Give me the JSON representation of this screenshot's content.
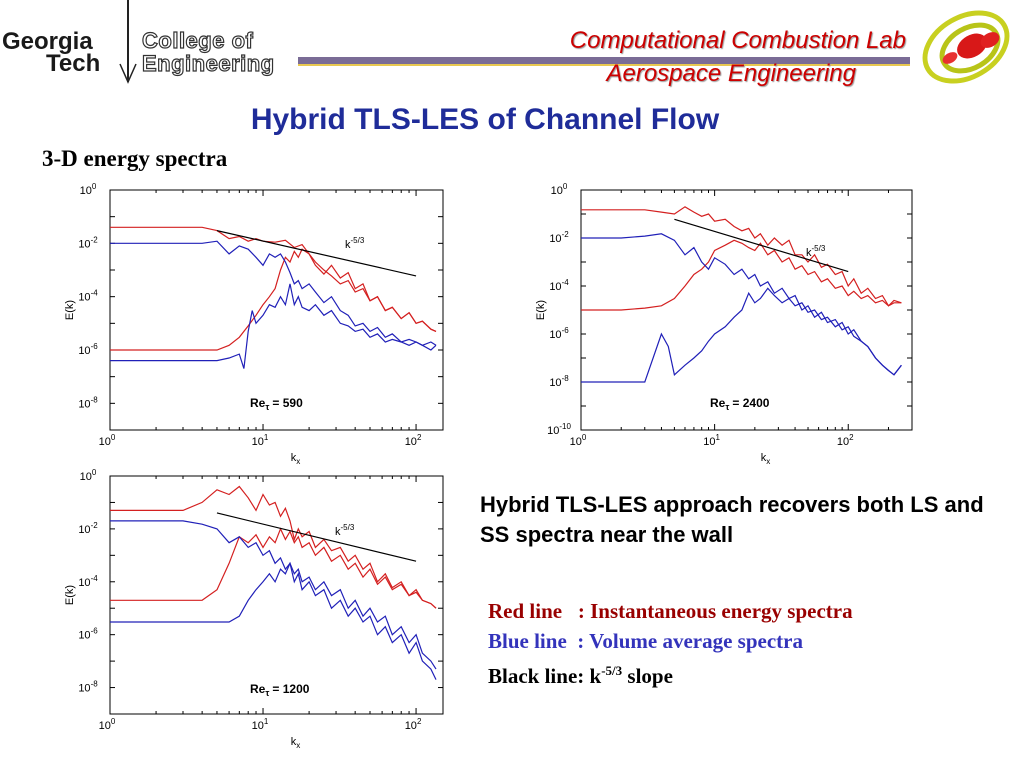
{
  "header": {
    "logo_line1": "Georgia",
    "logo_line2": "Tech",
    "college_line1": "College of",
    "college_line2": "Engineering",
    "lab_name": "Computational Combustion Lab",
    "department": "Aerospace Engineering"
  },
  "slide": {
    "title": "Hybrid TLS-LES of Channel Flow",
    "subtitle": "3-D energy spectra",
    "description": "Hybrid TLS-LES approach recovers both LS and SS spectra near the wall",
    "legend": {
      "red_label": "Red line",
      "red_text": ": Instantaneous energy spectra",
      "blue_label": "Blue line",
      "blue_text": ": Volume average spectra",
      "black_label": "Black line:",
      "black_base": "k",
      "black_exp": "-5/3",
      "black_text": "slope"
    }
  },
  "colors": {
    "red": "#d42020",
    "blue": "#2020b8",
    "black": "#000000",
    "title_blue": "#1f2c99",
    "lab_red": "#cc0000"
  },
  "chart_data": [
    {
      "type": "line",
      "xscale": "log",
      "yscale": "log",
      "xlabel": "k",
      "xlabel_sub": "x",
      "ylabel": "E(k)",
      "xlim": [
        1,
        150
      ],
      "ylim": [
        1e-09,
        1
      ],
      "xtick_exps": [
        0,
        1,
        2
      ],
      "ytick_exps": [
        0,
        -2,
        -4,
        -6,
        -8
      ],
      "annotation": "Re",
      "annotation_sub": "τ",
      "annotation_value": "= 590",
      "slope_label_base": "k",
      "slope_label_exp": "-5/3",
      "slope_line": {
        "x": [
          5,
          100
        ],
        "y": [
          0.03,
          0.0006
        ]
      },
      "series": [
        {
          "color": "red",
          "x": [
            1,
            2,
            3,
            4,
            5,
            6,
            7,
            8,
            9,
            10,
            12,
            14,
            16,
            18,
            20,
            22,
            25,
            28,
            32,
            36,
            40,
            45,
            50,
            56,
            63,
            70,
            80,
            90,
            100,
            110,
            125,
            135
          ],
          "y": [
            0.04,
            0.04,
            0.04,
            0.04,
            0.03,
            0.015,
            0.018,
            0.012,
            0.015,
            0.012,
            0.011,
            0.013,
            0.007,
            0.009,
            0.004,
            0.0015,
            0.0007,
            0.0015,
            0.0005,
            0.0008,
            0.0002,
            0.0003,
            7e-05,
            0.0001,
            3e-05,
            4e-05,
            1.5e-05,
            2.5e-05,
            1e-05,
            1.2e-05,
            6e-06,
            5e-06
          ]
        },
        {
          "color": "red",
          "x": [
            1,
            2,
            3,
            4,
            5,
            6,
            7,
            8,
            9,
            10,
            11,
            12,
            13,
            14,
            15,
            16,
            17,
            18,
            20,
            22,
            25,
            28,
            32,
            36,
            40,
            45,
            50,
            56,
            63,
            70,
            80,
            90,
            100,
            110,
            125,
            135
          ],
          "y": [
            1e-06,
            1e-06,
            1e-06,
            1e-06,
            1e-06,
            1.5e-06,
            3e-06,
            8e-06,
            2e-05,
            5e-05,
            0.0001,
            0.0002,
            0.001,
            0.003,
            0.002,
            0.005,
            0.003,
            0.006,
            0.004,
            0.002,
            0.001,
            0.0006,
            0.0003,
            0.0004,
            0.00015,
            0.0002,
            7e-05,
            0.0001,
            3e-05,
            4e-05,
            1.5e-05,
            2.5e-05,
            1e-05,
            1.2e-05,
            6e-06,
            5e-06
          ]
        },
        {
          "color": "blue",
          "x": [
            1,
            2,
            3,
            4,
            5,
            6,
            7,
            8,
            9,
            10,
            11,
            12,
            13,
            14,
            15,
            16,
            17,
            18,
            20,
            22,
            25,
            28,
            32,
            36,
            40,
            45,
            50,
            56,
            63,
            70,
            80,
            90,
            100,
            110,
            125,
            135
          ],
          "y": [
            0.01,
            0.01,
            0.01,
            0.01,
            0.012,
            0.004,
            0.008,
            0.006,
            0.003,
            0.0015,
            0.004,
            0.003,
            0.004,
            0.002,
            0.0008,
            0.0003,
            0.0004,
            0.0002,
            0.0003,
            0.00015,
            6e-05,
            0.0001,
            3e-05,
            2e-05,
            8e-06,
            1e-05,
            5e-06,
            7e-06,
            3e-06,
            4e-06,
            2e-06,
            2.5e-06,
            2e-06,
            1.5e-06,
            2e-06,
            1.5e-06
          ]
        },
        {
          "color": "blue",
          "x": [
            1,
            2,
            3,
            4,
            5,
            6,
            7,
            7.5,
            8,
            8.5,
            9,
            10,
            11,
            12,
            13,
            14,
            15,
            16,
            17,
            18,
            20,
            22,
            25,
            28,
            32,
            36,
            40,
            45,
            50,
            56,
            63,
            70,
            80,
            90,
            100,
            110,
            125,
            135
          ],
          "y": [
            4e-07,
            4e-07,
            4e-07,
            4e-07,
            4e-07,
            5e-07,
            7e-07,
            2e-07,
            5e-06,
            3e-05,
            1e-05,
            2e-05,
            5e-05,
            4e-05,
            0.0001,
            5e-05,
            0.0003,
            5e-05,
            0.0001,
            4e-05,
            3e-05,
            5e-05,
            2e-05,
            3e-05,
            1e-05,
            8e-06,
            5e-06,
            6e-06,
            3e-06,
            4e-06,
            2e-06,
            2.5e-06,
            2e-06,
            1.5e-06,
            2e-06,
            1.5e-06,
            1e-06,
            1.5e-06
          ]
        }
      ]
    },
    {
      "type": "line",
      "xscale": "log",
      "yscale": "log",
      "xlabel": "k",
      "xlabel_sub": "x",
      "ylabel": "E(k)",
      "xlim": [
        1,
        300
      ],
      "ylim": [
        1e-10,
        1
      ],
      "xtick_exps": [
        0,
        1,
        2
      ],
      "ytick_exps": [
        0,
        -2,
        -4,
        -6,
        -8,
        -10
      ],
      "annotation": "Re",
      "annotation_sub": "τ",
      "annotation_value": "= 2400",
      "slope_label_base": "k",
      "slope_label_exp": "-5/3",
      "slope_line": {
        "x": [
          5,
          100
        ],
        "y": [
          0.06,
          0.0004
        ]
      },
      "series": [
        {
          "color": "red",
          "x": [
            1,
            2,
            3,
            4,
            5,
            6,
            7,
            8,
            9,
            10,
            12,
            14,
            16,
            18,
            20,
            22,
            25,
            28,
            32,
            36,
            40,
            45,
            50,
            56,
            63,
            70,
            80,
            90,
            100,
            110,
            125,
            140,
            160,
            180,
            200,
            220,
            250
          ],
          "y": [
            0.15,
            0.15,
            0.15,
            0.12,
            0.1,
            0.2,
            0.12,
            0.08,
            0.1,
            0.05,
            0.06,
            0.03,
            0.02,
            0.025,
            0.01,
            0.015,
            0.005,
            0.01,
            0.005,
            0.008,
            0.002,
            0.002,
            0.001,
            0.002,
            0.0006,
            0.0008,
            0.0003,
            0.0004,
            0.0001,
            0.0002,
            5e-05,
            8e-05,
            3e-05,
            4e-05,
            1.5e-05,
            2.5e-05,
            2e-05
          ]
        },
        {
          "color": "red",
          "x": [
            1,
            2,
            3,
            4,
            5,
            6,
            7,
            8,
            9,
            10,
            12,
            14,
            16,
            18,
            20,
            22,
            25,
            28,
            32,
            36,
            40,
            45,
            50,
            56,
            63,
            70,
            80,
            90,
            100,
            110,
            125,
            140,
            160,
            180,
            200,
            220,
            250
          ],
          "y": [
            1e-05,
            1e-05,
            1.2e-05,
            1.5e-05,
            3e-05,
            0.0001,
            0.0003,
            0.0005,
            0.001,
            0.003,
            0.005,
            0.008,
            0.006,
            0.004,
            0.003,
            0.006,
            0.002,
            0.003,
            0.001,
            0.0015,
            0.0005,
            0.0007,
            0.0003,
            0.0004,
            0.00015,
            0.0002,
            8e-05,
            0.0001,
            4e-05,
            6e-05,
            3e-05,
            4e-05,
            2e-05,
            2.5e-05,
            1.5e-05,
            2e-05,
            2e-05
          ]
        },
        {
          "color": "blue",
          "x": [
            1,
            2,
            3,
            4,
            5,
            6,
            7,
            8,
            9,
            10,
            12,
            14,
            16,
            18,
            20,
            22,
            25,
            28,
            32,
            36,
            40,
            45,
            50,
            56,
            63,
            70,
            80,
            90,
            100,
            110,
            125,
            140,
            160,
            180,
            200,
            220,
            250
          ],
          "y": [
            0.01,
            0.01,
            0.012,
            0.015,
            0.008,
            0.002,
            0.004,
            0.001,
            0.0005,
            0.0015,
            0.0008,
            0.0003,
            0.0005,
            0.0002,
            0.0003,
            0.0001,
            0.00015,
            5e-05,
            8e-05,
            3e-05,
            4e-05,
            1e-05,
            1.5e-05,
            5e-06,
            8e-06,
            3e-06,
            4e-06,
            1.5e-06,
            2e-06,
            8e-07,
            5e-07,
            3e-07,
            1e-07,
            5e-08,
            3e-08,
            2e-08,
            5e-08
          ]
        },
        {
          "color": "blue",
          "x": [
            1,
            2,
            3,
            4,
            4.5,
            5,
            6,
            7,
            8,
            9,
            10,
            12,
            14,
            16,
            18,
            20,
            22,
            25,
            28,
            32,
            36,
            40,
            45,
            50,
            56,
            63,
            70,
            80,
            90,
            100,
            110,
            125,
            140,
            160,
            180,
            200,
            220,
            250
          ],
          "y": [
            1e-08,
            1e-08,
            1e-08,
            1e-06,
            3e-07,
            2e-08,
            5e-08,
            1e-07,
            2e-07,
            5e-07,
            1e-06,
            2e-06,
            5e-06,
            1e-05,
            5e-05,
            2e-05,
            3e-05,
            8e-05,
            4e-05,
            2e-05,
            3e-05,
            1.5e-05,
            2e-05,
            8e-06,
            1e-05,
            4e-06,
            5e-06,
            2e-06,
            3e-06,
            1e-06,
            1.5e-06,
            5e-07,
            3e-07,
            1e-07,
            5e-08,
            3e-08,
            2e-08,
            5e-08
          ]
        }
      ]
    },
    {
      "type": "line",
      "xscale": "log",
      "yscale": "log",
      "xlabel": "k",
      "xlabel_sub": "x",
      "ylabel": "E(k)",
      "xlim": [
        1,
        150
      ],
      "ylim": [
        1e-09,
        1
      ],
      "xtick_exps": [
        0,
        1,
        2
      ],
      "ytick_exps": [
        0,
        -2,
        -4,
        -6,
        -8
      ],
      "annotation": "Re",
      "annotation_sub": "τ",
      "annotation_value": "= 1200",
      "slope_label_base": "k",
      "slope_label_exp": "-5/3",
      "slope_line": {
        "x": [
          5,
          100
        ],
        "y": [
          0.04,
          0.0006
        ]
      },
      "series": [
        {
          "color": "red",
          "x": [
            1,
            2,
            3,
            4,
            5,
            6,
            7,
            8,
            9,
            10,
            11,
            12,
            13,
            14,
            15,
            16,
            17,
            18,
            20,
            22,
            25,
            28,
            32,
            36,
            40,
            45,
            50,
            56,
            63,
            70,
            80,
            90,
            100,
            110,
            125,
            135
          ],
          "y": [
            0.05,
            0.05,
            0.05,
            0.1,
            0.3,
            0.2,
            0.4,
            0.15,
            0.05,
            0.2,
            0.08,
            0.1,
            0.03,
            0.06,
            0.02,
            0.004,
            0.01,
            0.005,
            0.008,
            0.002,
            0.004,
            0.0015,
            0.002,
            0.0006,
            0.001,
            0.0003,
            0.0005,
            0.0001,
            0.0002,
            6e-05,
            0.0001,
            3e-05,
            5e-05,
            2e-05,
            1.5e-05,
            1e-05
          ]
        },
        {
          "color": "red",
          "x": [
            1,
            2,
            3,
            4,
            5,
            6,
            7,
            8,
            9,
            10,
            11,
            12,
            13,
            14,
            15,
            16,
            17,
            18,
            20,
            22,
            25,
            28,
            32,
            36,
            40,
            45,
            50,
            56,
            63,
            70,
            80,
            90,
            100,
            110,
            125,
            135
          ],
          "y": [
            2e-05,
            2e-05,
            2e-05,
            2e-05,
            5e-05,
            0.0005,
            0.005,
            0.003,
            0.006,
            0.002,
            0.005,
            0.003,
            0.01,
            0.004,
            0.008,
            0.003,
            0.005,
            0.002,
            0.003,
            0.001,
            0.002,
            0.0006,
            0.001,
            0.0003,
            0.0005,
            0.00015,
            0.0003,
            8e-05,
            0.00015,
            5e-05,
            8e-05,
            3e-05,
            4e-05,
            2e-05,
            1.5e-05,
            1e-05
          ]
        },
        {
          "color": "blue",
          "x": [
            1,
            2,
            3,
            4,
            5,
            6,
            7,
            8,
            9,
            10,
            11,
            12,
            13,
            14,
            15,
            16,
            17,
            18,
            20,
            22,
            25,
            28,
            32,
            36,
            40,
            45,
            50,
            56,
            63,
            70,
            80,
            90,
            100,
            110,
            125,
            135
          ],
          "y": [
            0.02,
            0.02,
            0.02,
            0.015,
            0.01,
            0.003,
            0.005,
            0.002,
            0.003,
            0.001,
            0.0015,
            0.0005,
            0.0008,
            0.0003,
            0.0005,
            0.0001,
            0.0002,
            5e-05,
            0.0001,
            3e-05,
            5e-05,
            1e-05,
            2e-05,
            5e-06,
            1e-05,
            3e-06,
            5e-06,
            1e-06,
            2e-06,
            5e-07,
            1e-06,
            2e-07,
            5e-07,
            1e-07,
            5e-08,
            2e-08
          ]
        },
        {
          "color": "blue",
          "x": [
            1,
            2,
            3,
            4,
            5,
            6,
            7,
            8,
            9,
            10,
            11,
            12,
            13,
            14,
            15,
            16,
            17,
            18,
            20,
            22,
            25,
            28,
            32,
            36,
            40,
            45,
            50,
            56,
            63,
            70,
            80,
            90,
            100,
            110,
            125,
            135
          ],
          "y": [
            3e-06,
            3e-06,
            3e-06,
            3e-06,
            3e-06,
            3e-06,
            5e-06,
            2e-05,
            5e-05,
            0.0001,
            0.0002,
            0.0001,
            0.0003,
            0.0002,
            0.0005,
            0.0002,
            0.0003,
            0.0001,
            0.00015,
            5e-05,
            0.0001,
            3e-05,
            5e-05,
            1e-05,
            2e-05,
            5e-06,
            1e-05,
            3e-06,
            5e-06,
            1e-06,
            2e-06,
            5e-07,
            1e-06,
            2e-07,
            1e-07,
            5e-08
          ]
        }
      ]
    }
  ]
}
